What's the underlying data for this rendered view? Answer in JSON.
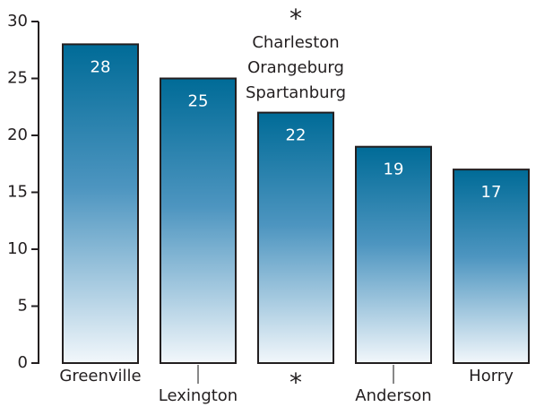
{
  "chart_data": {
    "type": "bar",
    "categories": [
      "Greenville",
      "Lexington",
      "*",
      "Anderson",
      "Horry"
    ],
    "values": [
      28,
      25,
      22,
      19,
      17
    ],
    "color": "#006b97",
    "ylim": [
      0,
      30
    ],
    "yticks": [
      0,
      5,
      10,
      15,
      20,
      25,
      30
    ],
    "annotation": {
      "symbol": "*",
      "lines": [
        "Charleston",
        "Orangeburg",
        "Spartanburg"
      ]
    }
  }
}
